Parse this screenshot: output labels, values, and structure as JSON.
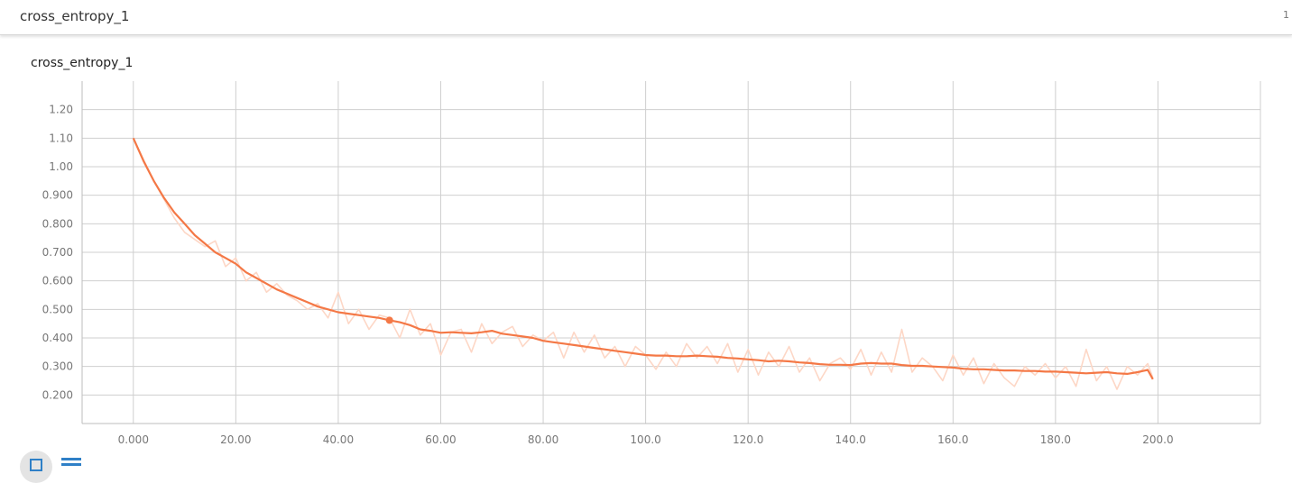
{
  "header": {
    "title": "cross_entropy_1",
    "count": "1"
  },
  "card": {
    "title": "cross_entropy_1"
  },
  "colors": {
    "smoothed": "#f47846",
    "raw": "#fdd7c6",
    "grid": "#cfcfcf",
    "axis": "#bdbdbd"
  },
  "icons": {
    "expand": "fullscreen-icon",
    "data": "list-icon"
  },
  "chart_data": {
    "type": "line",
    "title": "",
    "xlabel": "",
    "ylabel": "",
    "xlim": [
      -10,
      220
    ],
    "ylim": [
      0.1,
      1.3
    ],
    "grid": true,
    "x_ticks": [
      0,
      20,
      40,
      60,
      80,
      100,
      120,
      140,
      160,
      180,
      200
    ],
    "x_tick_labels": [
      "0.000",
      "20.00",
      "40.00",
      "60.00",
      "80.00",
      "100.0",
      "120.0",
      "140.0",
      "160.0",
      "180.0",
      "200.0"
    ],
    "y_ticks": [
      0.2,
      0.3,
      0.4,
      0.5,
      0.6,
      0.7,
      0.8,
      0.9,
      1.0,
      1.1,
      1.2
    ],
    "y_tick_labels": [
      "0.200",
      "0.300",
      "0.400",
      "0.500",
      "0.600",
      "0.700",
      "0.800",
      "0.900",
      "1.00",
      "1.10",
      "1.20"
    ],
    "highlight_point": {
      "x": 50,
      "y": 0.462
    },
    "series": [
      {
        "role": "raw",
        "x": [
          0,
          4,
          8,
          10,
          14,
          16,
          18,
          20,
          22,
          24,
          26,
          28,
          30,
          32,
          34,
          36,
          38,
          40,
          42,
          44,
          46,
          48,
          50,
          52,
          54,
          56,
          58,
          60,
          62,
          64,
          66,
          68,
          70,
          72,
          74,
          76,
          78,
          80,
          82,
          84,
          86,
          88,
          90,
          92,
          94,
          96,
          98,
          100,
          102,
          104,
          106,
          108,
          110,
          112,
          114,
          116,
          118,
          120,
          122,
          124,
          126,
          128,
          130,
          132,
          134,
          136,
          138,
          140,
          142,
          144,
          146,
          148,
          150,
          152,
          154,
          156,
          158,
          160,
          162,
          164,
          166,
          168,
          170,
          172,
          174,
          176,
          178,
          180,
          182,
          184,
          186,
          188,
          190,
          192,
          194,
          196,
          198,
          199
        ],
        "y": [
          1.1,
          0.95,
          0.82,
          0.77,
          0.72,
          0.74,
          0.65,
          0.68,
          0.6,
          0.63,
          0.56,
          0.59,
          0.55,
          0.53,
          0.5,
          0.52,
          0.47,
          0.56,
          0.45,
          0.5,
          0.43,
          0.48,
          0.47,
          0.4,
          0.5,
          0.41,
          0.45,
          0.34,
          0.42,
          0.43,
          0.35,
          0.45,
          0.38,
          0.42,
          0.44,
          0.37,
          0.41,
          0.39,
          0.42,
          0.33,
          0.42,
          0.35,
          0.41,
          0.33,
          0.37,
          0.3,
          0.37,
          0.34,
          0.29,
          0.35,
          0.3,
          0.38,
          0.33,
          0.37,
          0.31,
          0.38,
          0.28,
          0.36,
          0.27,
          0.35,
          0.3,
          0.37,
          0.28,
          0.33,
          0.25,
          0.31,
          0.33,
          0.29,
          0.36,
          0.27,
          0.35,
          0.28,
          0.43,
          0.28,
          0.33,
          0.3,
          0.25,
          0.34,
          0.27,
          0.33,
          0.24,
          0.31,
          0.26,
          0.23,
          0.3,
          0.27,
          0.31,
          0.26,
          0.3,
          0.23,
          0.36,
          0.25,
          0.3,
          0.22,
          0.3,
          0.27,
          0.31,
          0.26
        ]
      },
      {
        "role": "smoothed",
        "x": [
          0,
          2,
          4,
          6,
          8,
          10,
          12,
          14,
          16,
          18,
          20,
          22,
          24,
          26,
          28,
          30,
          32,
          34,
          36,
          38,
          40,
          42,
          44,
          46,
          48,
          50,
          52,
          54,
          56,
          58,
          60,
          62,
          64,
          66,
          68,
          70,
          72,
          74,
          76,
          78,
          80,
          82,
          84,
          86,
          88,
          90,
          92,
          94,
          96,
          98,
          100,
          102,
          104,
          106,
          108,
          110,
          112,
          114,
          116,
          118,
          120,
          122,
          124,
          126,
          128,
          130,
          132,
          134,
          136,
          138,
          140,
          142,
          144,
          146,
          148,
          150,
          152,
          154,
          156,
          158,
          160,
          162,
          164,
          166,
          168,
          170,
          172,
          174,
          176,
          178,
          180,
          182,
          184,
          186,
          188,
          190,
          192,
          194,
          196,
          198,
          199
        ],
        "y": [
          1.1,
          1.02,
          0.95,
          0.89,
          0.84,
          0.8,
          0.76,
          0.73,
          0.7,
          0.68,
          0.66,
          0.63,
          0.61,
          0.59,
          0.57,
          0.555,
          0.54,
          0.525,
          0.51,
          0.5,
          0.49,
          0.485,
          0.48,
          0.475,
          0.47,
          0.462,
          0.455,
          0.445,
          0.43,
          0.425,
          0.418,
          0.42,
          0.418,
          0.416,
          0.42,
          0.425,
          0.415,
          0.41,
          0.405,
          0.4,
          0.39,
          0.385,
          0.38,
          0.375,
          0.37,
          0.365,
          0.36,
          0.355,
          0.35,
          0.345,
          0.34,
          0.338,
          0.338,
          0.336,
          0.336,
          0.338,
          0.336,
          0.334,
          0.33,
          0.328,
          0.325,
          0.322,
          0.318,
          0.32,
          0.318,
          0.314,
          0.312,
          0.308,
          0.306,
          0.306,
          0.305,
          0.31,
          0.312,
          0.31,
          0.31,
          0.305,
          0.302,
          0.302,
          0.3,
          0.298,
          0.296,
          0.292,
          0.29,
          0.29,
          0.288,
          0.286,
          0.286,
          0.284,
          0.284,
          0.282,
          0.282,
          0.28,
          0.278,
          0.276,
          0.278,
          0.28,
          0.276,
          0.274,
          0.28,
          0.288,
          0.255
        ]
      }
    ]
  }
}
